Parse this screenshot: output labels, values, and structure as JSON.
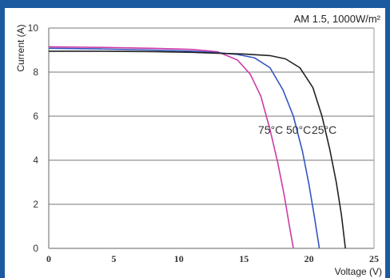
{
  "colors": {
    "header": "#1c5aa0",
    "frame": "#1c5aa0",
    "grid": "#777777"
  },
  "chart_data": {
    "type": "line",
    "title": "",
    "conditions": "AM 1.5, 1000W/m²",
    "xlabel": "Voltage (V)",
    "ylabel": "Current (A)",
    "xlim": [
      0,
      25
    ],
    "ylim": [
      0,
      10
    ],
    "xticks": [
      "0",
      "5",
      "10",
      "15",
      "20",
      "25"
    ],
    "yticks": [
      "0",
      "2",
      "4",
      "6",
      "8",
      "10"
    ],
    "grid": "horizontal",
    "series_labels_text": [
      "75°C",
      "50°C",
      "25°C"
    ],
    "series": [
      {
        "color": "#cc3aa8",
        "x": [
          0,
          4,
          8,
          11,
          13,
          14.5,
          15.5,
          16.3,
          17.0,
          17.6,
          18.1,
          18.5,
          18.8
        ],
        "y": [
          9.15,
          9.12,
          9.08,
          9.03,
          8.92,
          8.55,
          7.9,
          6.9,
          5.4,
          3.9,
          2.4,
          1.0,
          0
        ]
      },
      {
        "color": "#3355c0",
        "x": [
          0,
          4,
          8,
          11,
          13,
          14.5,
          15.8,
          17.0,
          18.0,
          18.8,
          19.5,
          20.0,
          20.4,
          20.8
        ],
        "y": [
          9.08,
          9.05,
          9.0,
          8.95,
          8.88,
          8.8,
          8.65,
          8.2,
          7.2,
          6.0,
          4.4,
          2.9,
          1.5,
          0
        ]
      },
      {
        "color": "#222222",
        "x": [
          0,
          4,
          8,
          11,
          13,
          15,
          17,
          18.2,
          19.3,
          20.3,
          21.0,
          21.6,
          22.1,
          22.5,
          22.8
        ],
        "y": [
          8.95,
          8.95,
          8.93,
          8.9,
          8.86,
          8.82,
          8.75,
          8.6,
          8.2,
          7.3,
          6.0,
          4.5,
          3.0,
          1.5,
          0
        ]
      }
    ]
  }
}
